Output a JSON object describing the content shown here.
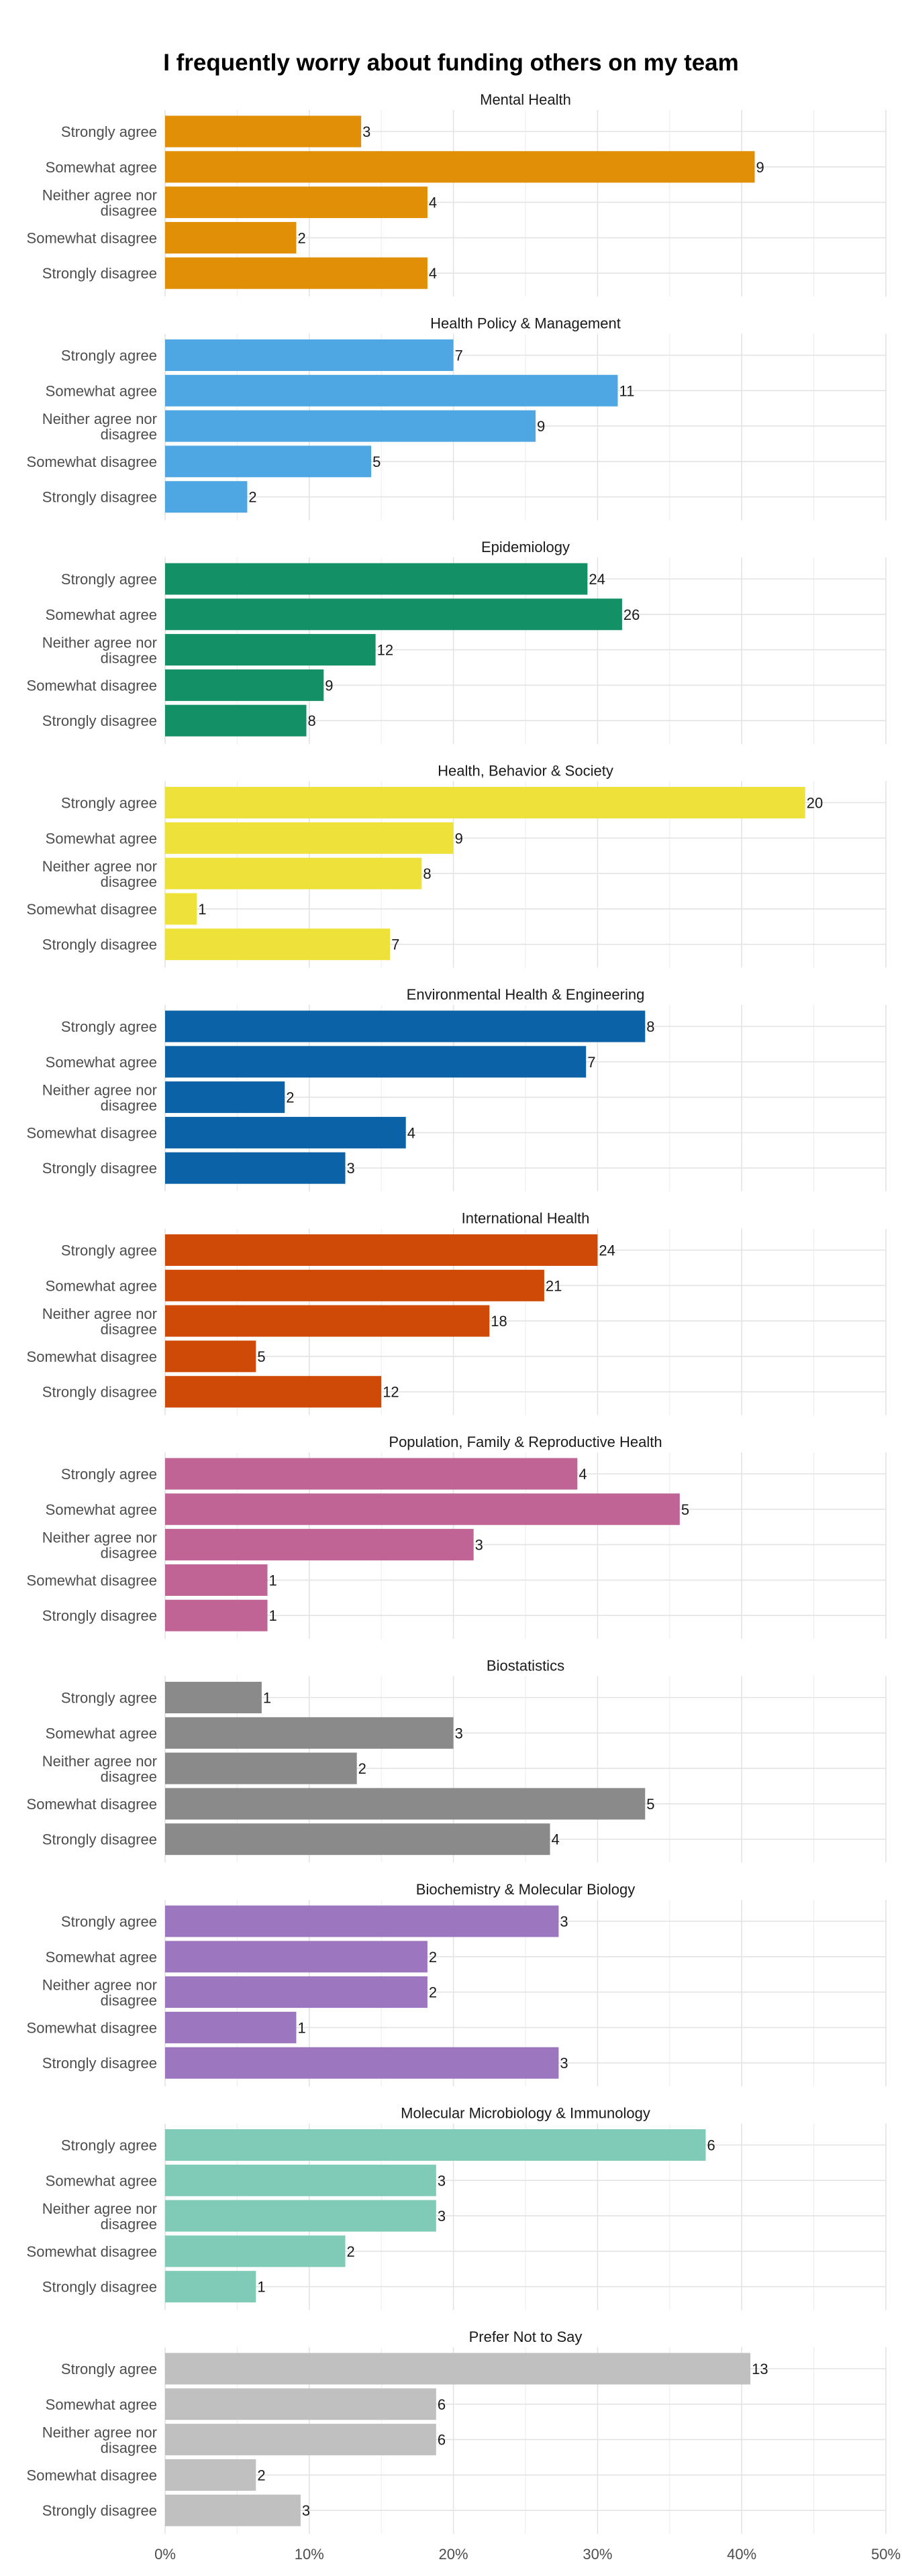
{
  "chart_data": {
    "type": "bar",
    "orientation": "horizontal",
    "title": "I frequently worry about funding others on my team",
    "categories": [
      "Strongly agree",
      "Somewhat agree",
      "Neither agree nor disagree",
      "Somewhat disagree",
      "Strongly disagree"
    ],
    "x_ticks": [
      "0%",
      "10%",
      "20%",
      "30%",
      "40%",
      "50%"
    ],
    "xlim": [
      0,
      50
    ],
    "grid": true,
    "facets": [
      {
        "name": "Mental Health",
        "color": "#E08F06",
        "percent": [
          13.6,
          40.9,
          18.2,
          9.1,
          18.2
        ],
        "counts": [
          3,
          9,
          4,
          2,
          4
        ]
      },
      {
        "name": "Health Policy & Management",
        "color": "#4EA6E3",
        "percent": [
          20.0,
          31.4,
          25.7,
          14.3,
          5.7
        ],
        "counts": [
          7,
          11,
          9,
          5,
          2
        ]
      },
      {
        "name": "Epidemiology",
        "color": "#139065",
        "percent": [
          29.3,
          31.7,
          14.6,
          11.0,
          9.8
        ],
        "counts": [
          24,
          26,
          12,
          9,
          8
        ]
      },
      {
        "name": "Health, Behavior & Society",
        "color": "#EEE13A",
        "percent": [
          44.4,
          20.0,
          17.8,
          2.2,
          15.6
        ],
        "counts": [
          20,
          9,
          8,
          1,
          7
        ]
      },
      {
        "name": "Environmental Health & Engineering",
        "color": "#0B62A6",
        "percent": [
          33.3,
          29.2,
          8.3,
          16.7,
          12.5
        ],
        "counts": [
          8,
          7,
          2,
          4,
          3
        ]
      },
      {
        "name": "International Health",
        "color": "#CF4A06",
        "percent": [
          30.0,
          26.3,
          22.5,
          6.3,
          15.0
        ],
        "counts": [
          24,
          21,
          18,
          5,
          12
        ]
      },
      {
        "name": "Population, Family & Reproductive Health",
        "color": "#C06395",
        "percent": [
          28.6,
          35.7,
          21.4,
          7.1,
          7.1
        ],
        "counts": [
          4,
          5,
          3,
          1,
          1
        ]
      },
      {
        "name": "Biostatistics",
        "color": "#8A8A8A",
        "percent": [
          6.7,
          20.0,
          13.3,
          33.3,
          26.7
        ],
        "counts": [
          1,
          3,
          2,
          5,
          4
        ]
      },
      {
        "name": "Biochemistry & Molecular Biology",
        "color": "#9C77BF",
        "percent": [
          27.3,
          18.2,
          18.2,
          9.1,
          27.3
        ],
        "counts": [
          3,
          2,
          2,
          1,
          3
        ]
      },
      {
        "name": "Molecular Microbiology & Immunology",
        "color": "#7FCBB8",
        "percent": [
          37.5,
          18.8,
          18.8,
          12.5,
          6.3
        ],
        "counts": [
          6,
          3,
          3,
          2,
          1
        ]
      },
      {
        "name": "Prefer Not to Say",
        "color": "#C0C0C0",
        "percent": [
          40.6,
          18.8,
          18.8,
          6.3,
          9.4
        ],
        "counts": [
          13,
          6,
          6,
          2,
          3
        ]
      }
    ]
  }
}
